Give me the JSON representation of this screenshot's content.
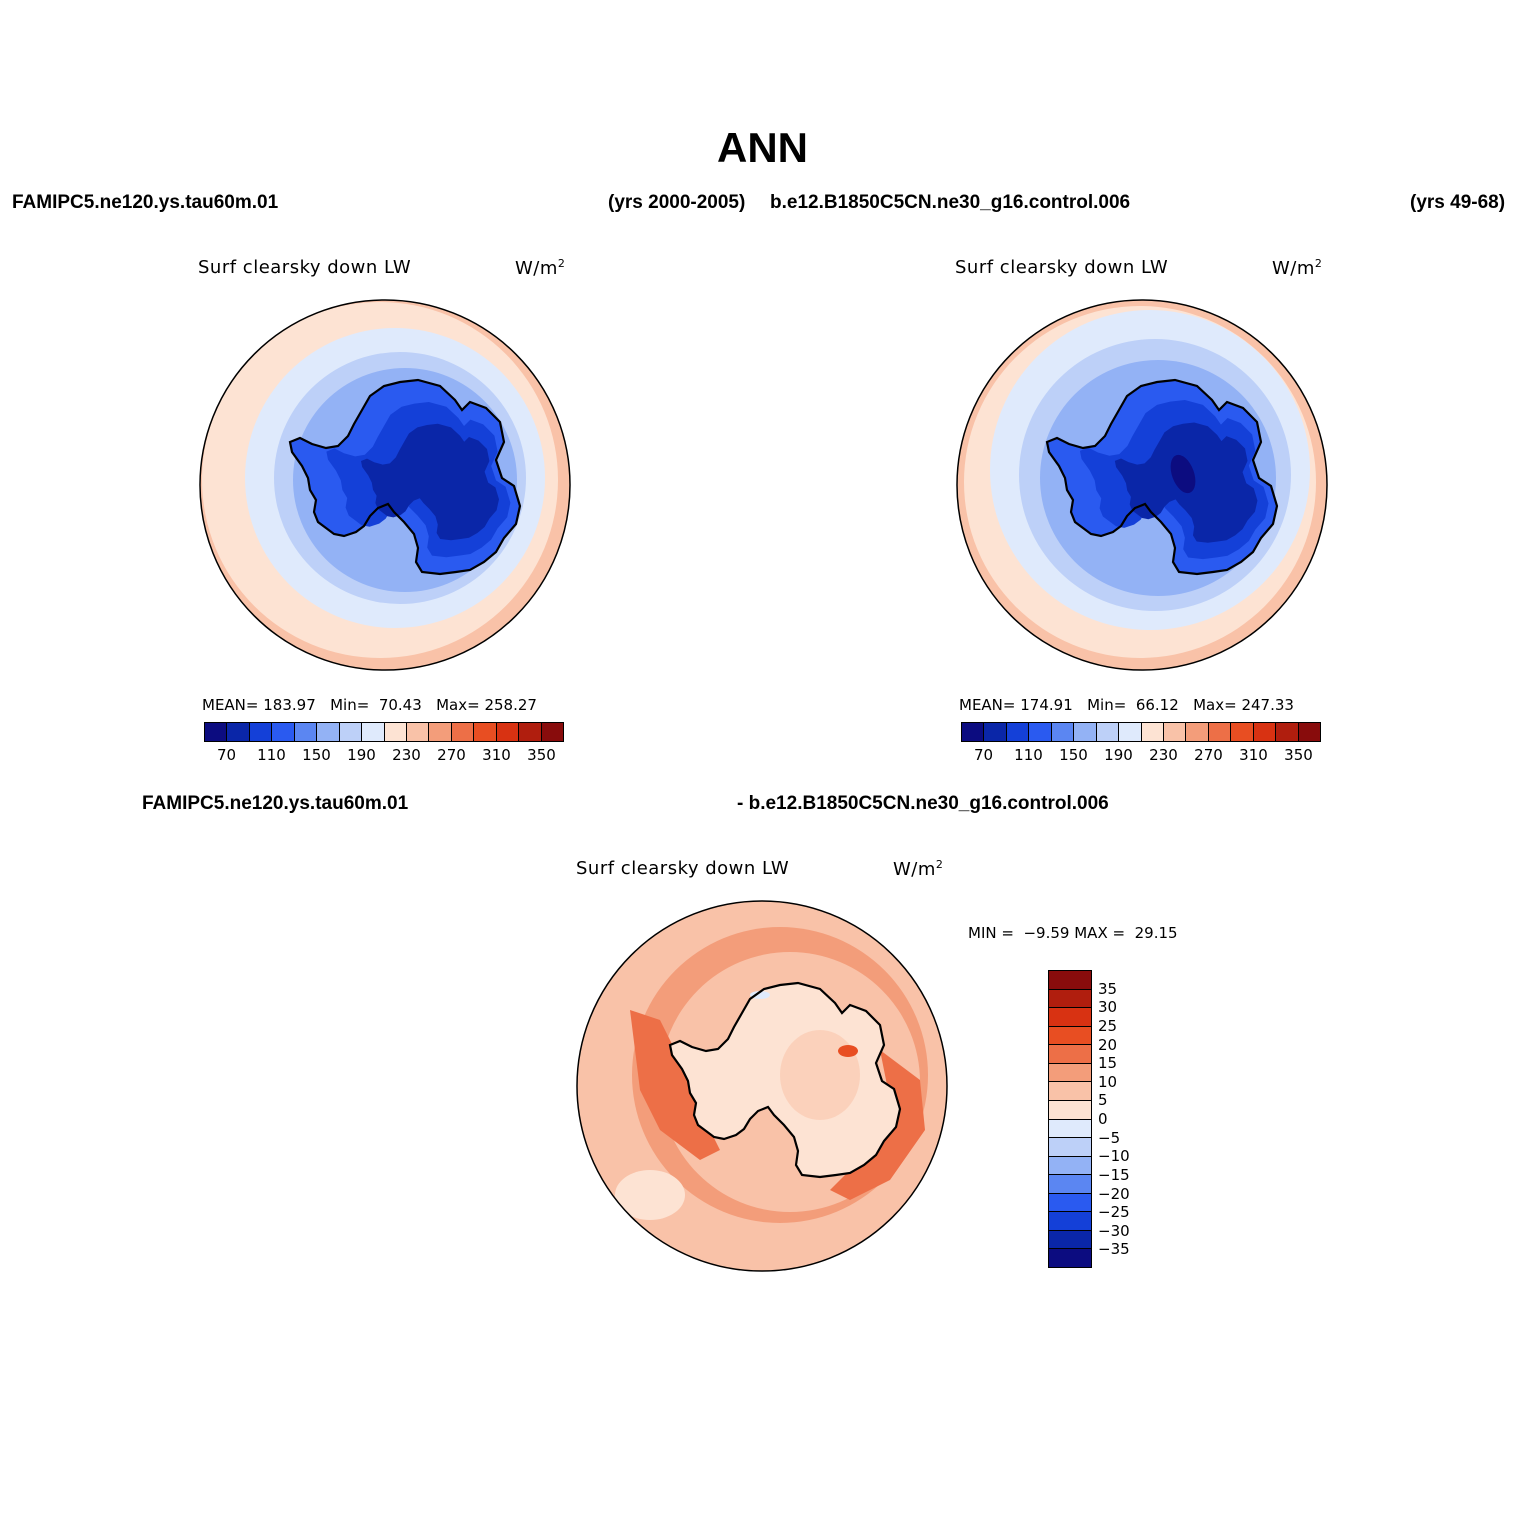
{
  "page_title": "ANN",
  "headers": {
    "left_case": "FAMIPC5.ne120.ys.tau60m.01",
    "left_years": "(yrs 2000-2005)",
    "right_case": "b.e12.B1850C5CN.ne30_g16.control.006",
    "right_years": "(yrs 49-68)",
    "diff_left": "FAMIPC5.ne120.ys.tau60m.01",
    "diff_right": "- b.e12.B1850C5CN.ne30_g16.control.006"
  },
  "panels": {
    "left": {
      "variable": "Surf clearsky down LW",
      "units_base": "W/m",
      "units_exp": "2",
      "mean_label": "MEAN=",
      "mean": "183.97",
      "min_label": "Min=",
      "min": "70.43",
      "max_label": "Max=",
      "max": "258.27"
    },
    "right": {
      "variable": "Surf clearsky down LW",
      "units_base": "W/m",
      "units_exp": "2",
      "mean_label": "MEAN=",
      "mean": "174.91",
      "min_label": "Min=",
      "min": "66.12",
      "max_label": "Max=",
      "max": "247.33"
    },
    "diff": {
      "variable": "Surf clearsky down LW",
      "units_base": "W/m",
      "units_exp": "2",
      "min_label": "MIN =",
      "min": "−9.59",
      "max_label": "MAX =",
      "max": "29.15"
    }
  },
  "colorbars": {
    "abs_colors": [
      "#0c0c80",
      "#0a26a8",
      "#1440d8",
      "#2a5af0",
      "#5b86f2",
      "#93b2f5",
      "#bdd0f8",
      "#dfeafc",
      "#fde3d3",
      "#f9c2a8",
      "#f39d7a",
      "#ed6f47",
      "#e84e22",
      "#d83212",
      "#b01e0e",
      "#880c0c"
    ],
    "abs_labels": [
      "70",
      "110",
      "150",
      "190",
      "230",
      "270",
      "310",
      "350"
    ],
    "diff_colors": [
      "#880c0c",
      "#b01e0e",
      "#d83212",
      "#e84e22",
      "#ed6f47",
      "#f39d7a",
      "#f9c2a8",
      "#fde3d3",
      "#dfeafc",
      "#bdd0f8",
      "#93b2f5",
      "#5b86f2",
      "#2a5af0",
      "#1440d8",
      "#0a26a8",
      "#0c0c80"
    ],
    "diff_labels": [
      "35",
      "30",
      "25",
      "20",
      "15",
      "10",
      "5",
      "0",
      "−5",
      "−10",
      "−15",
      "−20",
      "−25",
      "−30",
      "−35"
    ]
  }
}
